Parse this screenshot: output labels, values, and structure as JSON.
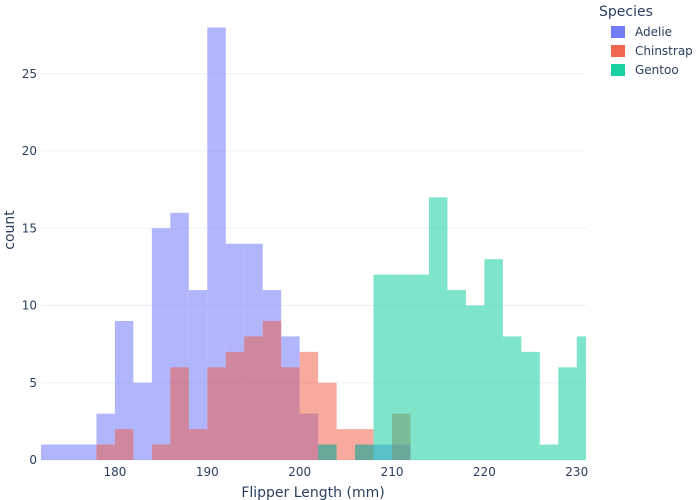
{
  "chart_data": {
    "type": "bar",
    "subtype": "overlaid histogram",
    "xlabel": "Flipper Length (mm)",
    "ylabel": "count",
    "xlim": [
      172,
      231
    ],
    "ylim": [
      0,
      29
    ],
    "xticks": [
      180,
      190,
      200,
      210,
      220,
      230
    ],
    "yticks": [
      0,
      5,
      10,
      15,
      20,
      25
    ],
    "bin_width": 2,
    "grid": true,
    "legend_title": "Species",
    "legend_position": "top-right",
    "series": [
      {
        "name": "Adelie",
        "color": "#636efa",
        "bins": [
          {
            "x0": 172,
            "x1": 174,
            "count": 1
          },
          {
            "x0": 174,
            "x1": 176,
            "count": 1
          },
          {
            "x0": 176,
            "x1": 178,
            "count": 1
          },
          {
            "x0": 178,
            "x1": 180,
            "count": 3
          },
          {
            "x0": 180,
            "x1": 182,
            "count": 9
          },
          {
            "x0": 182,
            "x1": 184,
            "count": 5
          },
          {
            "x0": 184,
            "x1": 186,
            "count": 15
          },
          {
            "x0": 186,
            "x1": 188,
            "count": 16
          },
          {
            "x0": 188,
            "x1": 190,
            "count": 11
          },
          {
            "x0": 190,
            "x1": 192,
            "count": 28
          },
          {
            "x0": 192,
            "x1": 194,
            "count": 14
          },
          {
            "x0": 194,
            "x1": 196,
            "count": 14
          },
          {
            "x0": 196,
            "x1": 198,
            "count": 11
          },
          {
            "x0": 198,
            "x1": 200,
            "count": 8
          },
          {
            "x0": 200,
            "x1": 202,
            "count": 3
          },
          {
            "x0": 202,
            "x1": 204,
            "count": 1
          },
          {
            "x0": 204,
            "x1": 206,
            "count": 0
          },
          {
            "x0": 206,
            "x1": 208,
            "count": 1
          },
          {
            "x0": 208,
            "x1": 210,
            "count": 1
          },
          {
            "x0": 210,
            "x1": 212,
            "count": 1
          }
        ]
      },
      {
        "name": "Chinstrap",
        "color": "#ef553b",
        "bins": [
          {
            "x0": 178,
            "x1": 180,
            "count": 1
          },
          {
            "x0": 180,
            "x1": 182,
            "count": 2
          },
          {
            "x0": 182,
            "x1": 184,
            "count": 0
          },
          {
            "x0": 184,
            "x1": 186,
            "count": 1
          },
          {
            "x0": 186,
            "x1": 188,
            "count": 6
          },
          {
            "x0": 188,
            "x1": 190,
            "count": 2
          },
          {
            "x0": 190,
            "x1": 192,
            "count": 6
          },
          {
            "x0": 192,
            "x1": 194,
            "count": 7
          },
          {
            "x0": 194,
            "x1": 196,
            "count": 8
          },
          {
            "x0": 196,
            "x1": 198,
            "count": 9
          },
          {
            "x0": 198,
            "x1": 200,
            "count": 6
          },
          {
            "x0": 200,
            "x1": 202,
            "count": 7
          },
          {
            "x0": 202,
            "x1": 204,
            "count": 5
          },
          {
            "x0": 204,
            "x1": 206,
            "count": 2
          },
          {
            "x0": 206,
            "x1": 208,
            "count": 2
          },
          {
            "x0": 208,
            "x1": 210,
            "count": 0
          },
          {
            "x0": 210,
            "x1": 212,
            "count": 3
          },
          {
            "x0": 212,
            "x1": 214,
            "count": 0
          }
        ]
      },
      {
        "name": "Gentoo",
        "color": "#00cc96",
        "bins": [
          {
            "x0": 202,
            "x1": 204,
            "count": 1
          },
          {
            "x0": 204,
            "x1": 206,
            "count": 0
          },
          {
            "x0": 206,
            "x1": 208,
            "count": 1
          },
          {
            "x0": 208,
            "x1": 210,
            "count": 12
          },
          {
            "x0": 210,
            "x1": 212,
            "count": 12
          },
          {
            "x0": 212,
            "x1": 214,
            "count": 12
          },
          {
            "x0": 214,
            "x1": 216,
            "count": 17
          },
          {
            "x0": 216,
            "x1": 218,
            "count": 11
          },
          {
            "x0": 218,
            "x1": 220,
            "count": 10
          },
          {
            "x0": 220,
            "x1": 222,
            "count": 13
          },
          {
            "x0": 222,
            "x1": 224,
            "count": 8
          },
          {
            "x0": 224,
            "x1": 226,
            "count": 7
          },
          {
            "x0": 226,
            "x1": 228,
            "count": 1
          },
          {
            "x0": 228,
            "x1": 230,
            "count": 6
          },
          {
            "x0": 230,
            "x1": 232,
            "count": 8
          }
        ]
      }
    ]
  }
}
